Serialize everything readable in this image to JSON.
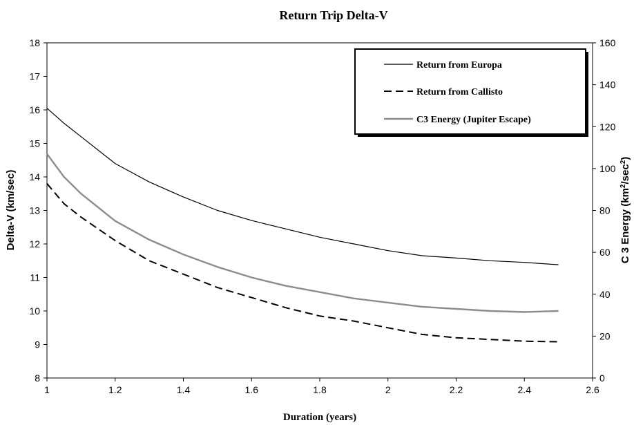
{
  "chart_data": {
    "type": "line",
    "title": "Return Trip Delta-V",
    "xlabel": "Duration (years)",
    "ylabel": "Delta-V (km/sec)",
    "y2label": {
      "main": "C 3 Energy (km",
      "sup1": "2",
      "mid": "/sec",
      "sup2": "2",
      "end": ")"
    },
    "xlim": [
      1,
      2.6
    ],
    "ylim": [
      8,
      18
    ],
    "y2lim": [
      0,
      160
    ],
    "x_ticks": [
      "1",
      "1.2",
      "1.4",
      "1.6",
      "1.8",
      "2",
      "2.2",
      "2.4",
      "2.6"
    ],
    "y_ticks": [
      "8",
      "9",
      "10",
      "11",
      "12",
      "13",
      "14",
      "15",
      "16",
      "17",
      "18"
    ],
    "y2_ticks": [
      "0",
      "20",
      "40",
      "60",
      "80",
      "100",
      "120",
      "140",
      "160"
    ],
    "grid": false,
    "legend_position": "top-right",
    "x": [
      1.0,
      1.05,
      1.1,
      1.2,
      1.3,
      1.4,
      1.5,
      1.6,
      1.7,
      1.8,
      1.9,
      2.0,
      2.1,
      2.2,
      2.3,
      2.4,
      2.5
    ],
    "series": [
      {
        "name": "Return from Europa",
        "axis": "left",
        "style": "solid",
        "color": "#000000",
        "values": [
          16.05,
          15.6,
          15.2,
          14.4,
          13.85,
          13.4,
          13.0,
          12.7,
          12.45,
          12.2,
          12.0,
          11.8,
          11.65,
          11.58,
          11.5,
          11.45,
          11.38
        ]
      },
      {
        "name": "Return from Callisto",
        "axis": "left",
        "style": "dashed",
        "color": "#000000",
        "values": [
          13.8,
          13.2,
          12.8,
          12.1,
          11.5,
          11.1,
          10.7,
          10.4,
          10.1,
          9.85,
          9.7,
          9.5,
          9.3,
          9.2,
          9.15,
          9.1,
          9.08
        ]
      },
      {
        "name": "C3 Energy (Jupiter Escape)",
        "axis": "right",
        "style": "solid",
        "color": "#8c8c8c",
        "values": [
          107,
          96,
          88,
          75,
          66,
          59,
          53,
          48,
          44,
          41,
          38,
          36,
          34,
          33,
          32,
          31.5,
          32
        ]
      }
    ]
  }
}
